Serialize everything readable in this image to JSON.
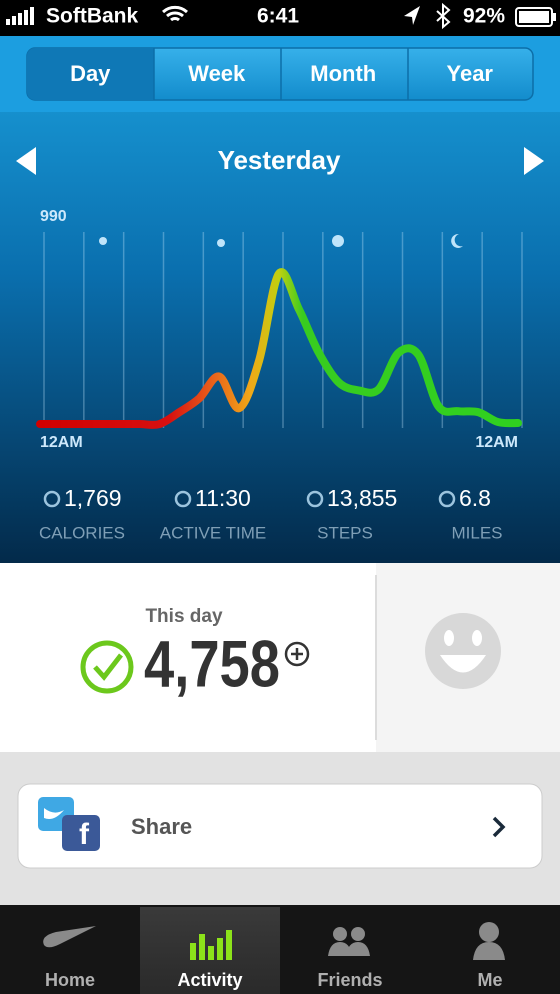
{
  "status_bar": {
    "carrier": "SoftBank",
    "time": "6:41",
    "battery": "92%"
  },
  "tabs": [
    "Day",
    "Week",
    "Month",
    "Year"
  ],
  "period": "Yesterday",
  "chart": {
    "type": "line",
    "x": [
      0,
      1,
      2,
      3,
      4,
      5,
      6,
      7,
      8,
      9,
      10,
      11,
      12,
      13,
      14,
      15,
      16,
      17,
      18,
      19,
      20,
      21,
      22,
      23,
      24
    ],
    "values": [
      20,
      20,
      20,
      20,
      20,
      20,
      20,
      80,
      150,
      260,
      100,
      340,
      780,
      600,
      380,
      230,
      190,
      195,
      380,
      370,
      110,
      85,
      80,
      30,
      25
    ],
    "xlim": [
      0,
      24
    ],
    "ylim": [
      0,
      990
    ],
    "yticks": [
      990
    ],
    "xticks": [
      {
        "value": 0,
        "label": "12AM"
      },
      {
        "value": 24,
        "label": "12AM"
      }
    ]
  },
  "stats": [
    {
      "value": "1,769",
      "label": "CALORIES"
    },
    {
      "value": "11:30",
      "label": "ACTIVE TIME"
    },
    {
      "value": "13,855",
      "label": "STEPS"
    },
    {
      "value": "6.8",
      "label": "MILES"
    }
  ],
  "summary": {
    "label": "This day",
    "value": "4,758"
  },
  "share": "Share",
  "bottom_tabs": [
    "Home",
    "Activity",
    "Friends",
    "Me"
  ]
}
